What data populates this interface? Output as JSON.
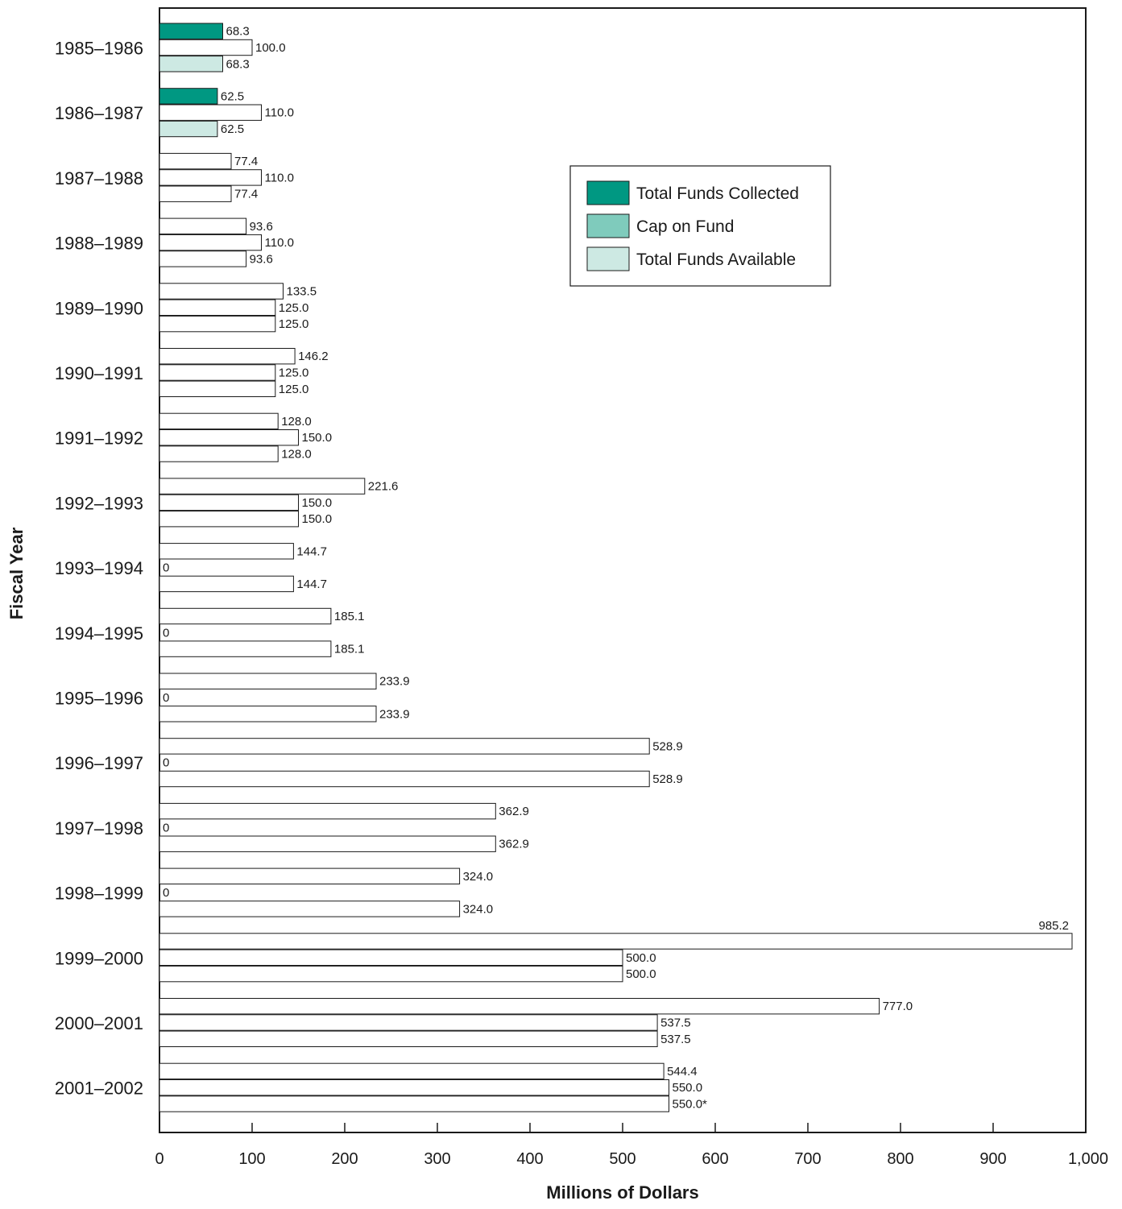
{
  "chart_data": {
    "type": "bar",
    "orientation": "horizontal",
    "ylabel": "Fiscal Year",
    "xlabel": "Millions of Dollars",
    "xlim": [
      0,
      1000
    ],
    "x_ticks": [
      "0",
      "100",
      "200",
      "300",
      "400",
      "500",
      "600",
      "700",
      "800",
      "900",
      "1,000"
    ],
    "x_tick_values": [
      0,
      100,
      200,
      300,
      400,
      500,
      600,
      700,
      800,
      900,
      1000
    ],
    "grid": false,
    "legend_position": "top-right",
    "categories": [
      "1985–1986",
      "1986–1987",
      "1987–1988",
      "1988–1989",
      "1989–1990",
      "1990–1991",
      "1991–1992",
      "1992–1993",
      "1993–1994",
      "1994–1995",
      "1995–1996",
      "1996–1997",
      "1997–1998",
      "1998–1999",
      "1999–2000",
      "2000–2001",
      "2001–2002"
    ],
    "series": [
      {
        "name": "Total Funds Collected",
        "color": "#009882",
        "values": [
          68.3,
          62.5,
          77.4,
          93.6,
          133.5,
          146.2,
          128.0,
          221.6,
          144.7,
          185.1,
          233.9,
          528.9,
          362.9,
          324.0,
          985.2,
          777.0,
          544.4
        ],
        "labels": [
          "68.3",
          "62.5",
          "77.4",
          "93.6",
          "133.5",
          "146.2",
          "128.0",
          "221.6",
          "144.7",
          "185.1",
          "233.9",
          "528.9",
          "362.9",
          "324.0",
          "985.2",
          "777.0",
          "544.4"
        ]
      },
      {
        "name": "Cap on Fund",
        "color": "#7fcbbc",
        "values": [
          100.0,
          110.0,
          110.0,
          110.0,
          125.0,
          125.0,
          150.0,
          150.0,
          0,
          0,
          0,
          0,
          0,
          0,
          500.0,
          537.5,
          550.0
        ],
        "labels": [
          "100.0",
          "110.0",
          "110.0",
          "110.0",
          "125.0",
          "125.0",
          "150.0",
          "150.0",
          "0",
          "0",
          "0",
          "0",
          "0",
          "0",
          "500.0",
          "537.5",
          "550.0"
        ]
      },
      {
        "name": "Total Funds Available",
        "color": "#cde9e3",
        "values": [
          68.3,
          62.5,
          77.4,
          93.6,
          125.0,
          125.0,
          128.0,
          150.0,
          144.7,
          185.1,
          233.9,
          528.9,
          362.9,
          324.0,
          500.0,
          537.5,
          550.0
        ],
        "labels": [
          "68.3",
          "62.5",
          "77.4",
          "93.6",
          "125.0",
          "125.0",
          "128.0",
          "150.0",
          "144.7",
          "185.1",
          "233.9",
          "528.9",
          "362.9",
          "324.0",
          "500.0",
          "537.5",
          "550.0*"
        ]
      }
    ],
    "filled_categories": [
      "1985–1986",
      "1986–1987"
    ],
    "cap_bar_fill": "#ffffff"
  }
}
